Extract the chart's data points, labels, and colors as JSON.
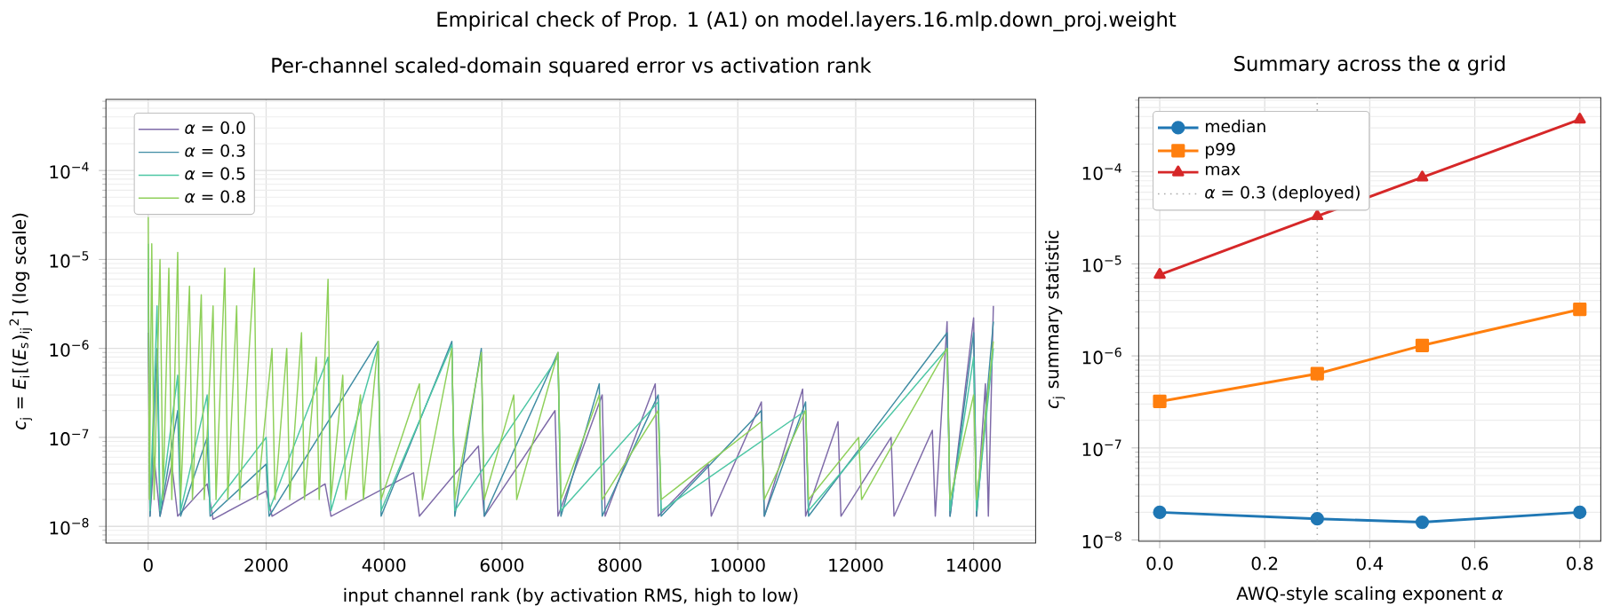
{
  "chart_data": [
    {
      "type": "line",
      "title": "Per-channel scaled-domain squared error vs activation rank",
      "xlabel": "input channel rank (by activation RMS, high to low)",
      "ylabel": "*c*$_{j}$ = *E*$_{i}$[(*E*$_{s}$)$_{ij}$$^{2}$] (log scale)",
      "annotations": [
        "Empirical check of Prop. 1 (A1) on model.layers.16.mlp.down_proj.weight"
      ],
      "log": "y",
      "grid": true,
      "legend": "top left",
      "xlim": [
        -717,
        15052
      ],
      "ylim": [
        6.5e-09,
        0.00063
      ],
      "xticks": [
        0,
        2000,
        4000,
        6000,
        8000,
        10000,
        12000,
        14000
      ],
      "yticks": [
        {
          "value": 1e-08,
          "label": "10$^{−8}$"
        },
        {
          "value": 1e-07,
          "label": "10$^{−7}$"
        },
        {
          "value": 1e-06,
          "label": "10$^{−6}$"
        },
        {
          "value": 1e-05,
          "label": "10$^{−5}$"
        },
        {
          "value": 0.0001,
          "label": "10$^{−4}$"
        }
      ],
      "series": [
        {
          "name": "*α* = 0.0",
          "color": "#7e6aa8",
          "x": [
            0,
            30,
            100,
            200,
            400,
            500,
            1000,
            1100,
            2000,
            2100,
            3000,
            3100,
            4500,
            4600,
            5600,
            5700,
            6900,
            6950,
            7700,
            7750,
            8600,
            8650,
            9500,
            9550,
            10400,
            10450,
            11100,
            11150,
            11700,
            11750,
            12600,
            12650,
            13300,
            13350,
            13550,
            13600,
            14000,
            14050,
            14200,
            14250,
            14335
          ],
          "values": [
            1.5e-06,
            1.3e-08,
            6e-08,
            1.3e-08,
            5e-08,
            1.3e-08,
            3e-08,
            1.2e-08,
            2.5e-08,
            1.3e-08,
            3e-08,
            1.3e-08,
            4e-08,
            1.3e-08,
            8e-08,
            1.3e-08,
            2e-07,
            1.3e-08,
            3e-07,
            1.3e-08,
            4e-07,
            1.3e-08,
            5e-08,
            1.3e-08,
            2.5e-07,
            1.3e-08,
            3.5e-07,
            1.3e-08,
            1.5e-07,
            1.3e-08,
            1e-07,
            1.3e-08,
            1.2e-07,
            1.3e-08,
            2e-06,
            1.3e-08,
            2.2e-06,
            1.3e-08,
            4e-07,
            1.3e-08,
            3e-06
          ]
        },
        {
          "name": "*α* = 0.3",
          "color": "#3f8ca3",
          "x": [
            0,
            30,
            150,
            200,
            500,
            550,
            1000,
            1050,
            2000,
            2050,
            3900,
            3950,
            5150,
            5200,
            5650,
            5700,
            6950,
            7000,
            7650,
            7700,
            8650,
            8700,
            10400,
            10450,
            11150,
            11200,
            13550,
            13600,
            14000,
            14050,
            14335
          ],
          "values": [
            8e-06,
            1.3e-08,
            1e-06,
            1.3e-08,
            2e-07,
            1.3e-08,
            1e-07,
            1.3e-08,
            5e-08,
            1.3e-08,
            1.2e-06,
            1.3e-08,
            1.2e-06,
            1.3e-08,
            1e-06,
            1.3e-08,
            9e-07,
            1.3e-08,
            4e-07,
            1.3e-08,
            3e-07,
            1.3e-08,
            2e-07,
            1.3e-08,
            2.5e-07,
            1.3e-08,
            1.5e-06,
            1.3e-08,
            1.5e-06,
            1.3e-08,
            2e-06
          ]
        },
        {
          "name": "*α* = 0.5",
          "color": "#4cc6a4",
          "x": [
            0,
            30,
            150,
            200,
            500,
            550,
            1000,
            1050,
            2000,
            2050,
            3050,
            3100,
            3900,
            3950,
            5150,
            5200,
            6950,
            7000,
            8650,
            8700,
            11150,
            11200,
            13550,
            13600,
            14000,
            14050,
            14335
          ],
          "values": [
            1.5e-05,
            1.5e-08,
            3e-06,
            1.5e-08,
            5e-07,
            1.5e-08,
            3e-07,
            1.5e-08,
            1e-07,
            1.5e-08,
            8e-07,
            1.5e-08,
            1.1e-06,
            1.5e-08,
            1.1e-06,
            1.5e-08,
            8e-07,
            1.5e-08,
            2.5e-07,
            1.5e-08,
            2e-07,
            1.5e-08,
            1e-06,
            1.5e-08,
            8e-07,
            1.5e-08,
            1e-06
          ]
        },
        {
          "name": "*α* = 0.8",
          "color": "#8fd05a",
          "x": [
            0,
            20,
            60,
            100,
            200,
            250,
            350,
            400,
            500,
            550,
            700,
            750,
            900,
            950,
            1100,
            1150,
            1300,
            1350,
            1500,
            1550,
            1800,
            1850,
            2100,
            2150,
            2350,
            2400,
            2600,
            2650,
            2850,
            2900,
            3050,
            3100,
            3300,
            3350,
            3600,
            3650,
            3900,
            3950,
            4600,
            4650,
            5150,
            5200,
            5650,
            5700,
            6200,
            6250,
            6950,
            7000,
            7650,
            7700,
            8650,
            8700,
            10400,
            10450,
            11150,
            11200,
            12050,
            12100,
            13550,
            13600,
            14000,
            14050,
            14335
          ],
          "values": [
            3e-05,
            2e-08,
            1.5e-05,
            2e-08,
            1e-05,
            2e-08,
            8e-06,
            2e-08,
            1.2e-05,
            2e-08,
            5e-06,
            2e-08,
            4e-06,
            2e-08,
            3e-06,
            2e-08,
            8e-06,
            2e-08,
            3e-06,
            2e-08,
            8e-06,
            2e-08,
            1e-06,
            2e-08,
            1e-06,
            2e-08,
            1.5e-06,
            2e-08,
            8e-07,
            2e-08,
            6e-06,
            2e-08,
            5e-07,
            2e-08,
            3e-07,
            2e-08,
            1.2e-06,
            2e-08,
            4e-07,
            2e-08,
            1e-06,
            2e-08,
            9e-07,
            2e-08,
            3e-07,
            2e-08,
            9e-07,
            2e-08,
            3e-07,
            2e-08,
            2e-07,
            2e-08,
            1.5e-07,
            2e-08,
            2e-07,
            2e-08,
            1e-07,
            2e-08,
            1e-06,
            2e-08,
            3e-07,
            2e-08,
            1.2e-06
          ]
        }
      ]
    },
    {
      "type": "line",
      "title": "Summary across the α grid",
      "xlabel": "AWQ-style scaling exponent *α*",
      "ylabel": "*c*$_{j}$ summary statistic",
      "log": "y",
      "grid": true,
      "legend": "top left",
      "xlim": [
        -0.04,
        0.84
      ],
      "ylim": [
        9.7e-09,
        0.00064
      ],
      "xticks": [
        {
          "value": 0,
          "label": "0.0"
        },
        {
          "value": 0.2,
          "label": "0.2"
        },
        {
          "value": 0.4,
          "label": "0.4"
        },
        {
          "value": 0.6,
          "label": "0.6"
        },
        {
          "value": 0.8,
          "label": "0.8"
        }
      ],
      "yticks": [
        {
          "value": 1e-08,
          "label": "10$^{−8}$"
        },
        {
          "value": 1e-07,
          "label": "10$^{−7}$"
        },
        {
          "value": 1e-06,
          "label": "10$^{−6}$"
        },
        {
          "value": 1e-05,
          "label": "10$^{−5}$"
        },
        {
          "value": 0.0001,
          "label": "10$^{−4}$"
        }
      ],
      "x": [
        0,
        0.3,
        0.5,
        0.8
      ],
      "series": [
        {
          "name": "median",
          "color": "#1f77b4",
          "marker": "circle",
          "values": [
            2e-08,
            1.7e-08,
            1.56e-08,
            2e-08
          ]
        },
        {
          "name": "p99",
          "color": "#ff7f0e",
          "marker": "square",
          "values": [
            3.2e-07,
            6.4e-07,
            1.3e-06,
            3.2e-06
          ]
        },
        {
          "name": "max",
          "color": "#d62728",
          "marker": "triangle",
          "values": [
            7.6e-06,
            3.3e-05,
            8.7e-05,
            0.00037
          ]
        }
      ],
      "ref_lines": [
        {
          "axis": "x",
          "value": 0.3,
          "label": "*α* = 0.3 (deployed)",
          "color": "#aaaaaa",
          "line_style": "dotted"
        }
      ]
    }
  ]
}
